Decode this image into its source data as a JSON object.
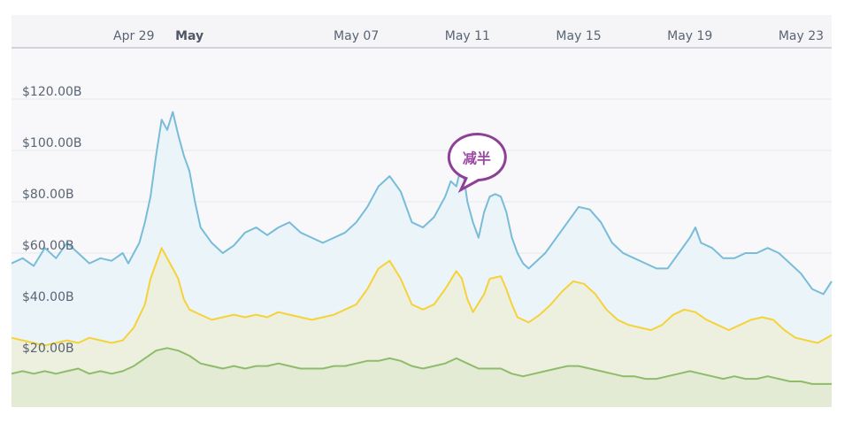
{
  "chart_data": {
    "type": "area",
    "x_tick_labels": [
      {
        "label": "Apr 29",
        "day": 0,
        "bold": false
      },
      {
        "label": "May",
        "day": 2,
        "bold": true
      },
      {
        "label": "May 07",
        "day": 8,
        "bold": false
      },
      {
        "label": "May 11",
        "day": 12,
        "bold": false
      },
      {
        "label": "May 15",
        "day": 16,
        "bold": false
      },
      {
        "label": "May 19",
        "day": 20,
        "bold": false
      },
      {
        "label": "May 23",
        "day": 24,
        "bold": false
      }
    ],
    "y_ticks": [
      {
        "value": 20,
        "label": "$20.00B"
      },
      {
        "value": 40,
        "label": "$40.00B"
      },
      {
        "value": 60,
        "label": "$60.00B"
      },
      {
        "value": 80,
        "label": "$80.00B"
      },
      {
        "value": 100,
        "label": "$100.00B"
      },
      {
        "value": 120,
        "label": "$120.00B"
      }
    ],
    "ylim": [
      0,
      140
    ],
    "xlim": [
      -4.4,
      25.1
    ],
    "grid": true,
    "annotation": {
      "text": "减半",
      "day": 12.4,
      "value": 85
    },
    "series": [
      {
        "color": "#78bcd9",
        "fill": "#e9f3f8",
        "points": [
          [
            -4.4,
            56
          ],
          [
            -4.0,
            58
          ],
          [
            -3.6,
            55
          ],
          [
            -3.2,
            62
          ],
          [
            -2.8,
            58
          ],
          [
            -2.4,
            64
          ],
          [
            -2.0,
            60
          ],
          [
            -1.6,
            56
          ],
          [
            -1.2,
            58
          ],
          [
            -0.8,
            57
          ],
          [
            -0.4,
            60
          ],
          [
            -0.2,
            56
          ],
          [
            0.2,
            64
          ],
          [
            0.4,
            72
          ],
          [
            0.6,
            82
          ],
          [
            0.8,
            98
          ],
          [
            1.0,
            112
          ],
          [
            1.2,
            108
          ],
          [
            1.4,
            115
          ],
          [
            1.6,
            106
          ],
          [
            1.8,
            98
          ],
          [
            2.0,
            92
          ],
          [
            2.2,
            80
          ],
          [
            2.4,
            70
          ],
          [
            2.6,
            67
          ],
          [
            2.8,
            64
          ],
          [
            3.0,
            62
          ],
          [
            3.2,
            60
          ],
          [
            3.6,
            63
          ],
          [
            4.0,
            68
          ],
          [
            4.4,
            70
          ],
          [
            4.8,
            67
          ],
          [
            5.2,
            70
          ],
          [
            5.6,
            72
          ],
          [
            6.0,
            68
          ],
          [
            6.4,
            66
          ],
          [
            6.8,
            64
          ],
          [
            7.2,
            66
          ],
          [
            7.6,
            68
          ],
          [
            8.0,
            72
          ],
          [
            8.4,
            78
          ],
          [
            8.8,
            86
          ],
          [
            9.2,
            90
          ],
          [
            9.6,
            84
          ],
          [
            10.0,
            72
          ],
          [
            10.4,
            70
          ],
          [
            10.8,
            74
          ],
          [
            11.2,
            82
          ],
          [
            11.4,
            88
          ],
          [
            11.6,
            86
          ],
          [
            11.8,
            95
          ],
          [
            12.0,
            80
          ],
          [
            12.2,
            72
          ],
          [
            12.4,
            66
          ],
          [
            12.6,
            76
          ],
          [
            12.8,
            82
          ],
          [
            13.0,
            83
          ],
          [
            13.2,
            82
          ],
          [
            13.4,
            76
          ],
          [
            13.6,
            66
          ],
          [
            13.8,
            60
          ],
          [
            14.0,
            56
          ],
          [
            14.2,
            54
          ],
          [
            14.4,
            56
          ],
          [
            14.8,
            60
          ],
          [
            15.2,
            66
          ],
          [
            15.6,
            72
          ],
          [
            16.0,
            78
          ],
          [
            16.4,
            77
          ],
          [
            16.8,
            72
          ],
          [
            17.2,
            64
          ],
          [
            17.6,
            60
          ],
          [
            18.0,
            58
          ],
          [
            18.4,
            56
          ],
          [
            18.8,
            54
          ],
          [
            19.2,
            54
          ],
          [
            19.6,
            60
          ],
          [
            20.0,
            66
          ],
          [
            20.2,
            70
          ],
          [
            20.4,
            64
          ],
          [
            20.8,
            62
          ],
          [
            21.2,
            58
          ],
          [
            21.6,
            58
          ],
          [
            22.0,
            60
          ],
          [
            22.4,
            60
          ],
          [
            22.8,
            62
          ],
          [
            23.2,
            60
          ],
          [
            23.6,
            56
          ],
          [
            24.0,
            52
          ],
          [
            24.4,
            46
          ],
          [
            24.8,
            44
          ],
          [
            25.1,
            49
          ]
        ]
      },
      {
        "color": "#f6d23a",
        "fill": "#edf0dc",
        "points": [
          [
            -4.4,
            27
          ],
          [
            -4.0,
            26
          ],
          [
            -3.6,
            25
          ],
          [
            -3.2,
            24
          ],
          [
            -2.8,
            25
          ],
          [
            -2.4,
            26
          ],
          [
            -2.0,
            25
          ],
          [
            -1.6,
            27
          ],
          [
            -1.2,
            26
          ],
          [
            -0.8,
            25
          ],
          [
            -0.4,
            26
          ],
          [
            0.0,
            31
          ],
          [
            0.4,
            40
          ],
          [
            0.6,
            50
          ],
          [
            0.8,
            56
          ],
          [
            1.0,
            62
          ],
          [
            1.2,
            58
          ],
          [
            1.4,
            54
          ],
          [
            1.6,
            50
          ],
          [
            1.8,
            42
          ],
          [
            2.0,
            38
          ],
          [
            2.4,
            36
          ],
          [
            2.8,
            34
          ],
          [
            3.2,
            35
          ],
          [
            3.6,
            36
          ],
          [
            4.0,
            35
          ],
          [
            4.4,
            36
          ],
          [
            4.8,
            35
          ],
          [
            5.2,
            37
          ],
          [
            5.6,
            36
          ],
          [
            6.0,
            35
          ],
          [
            6.4,
            34
          ],
          [
            6.8,
            35
          ],
          [
            7.2,
            36
          ],
          [
            7.6,
            38
          ],
          [
            8.0,
            40
          ],
          [
            8.4,
            46
          ],
          [
            8.8,
            54
          ],
          [
            9.2,
            57
          ],
          [
            9.6,
            50
          ],
          [
            10.0,
            40
          ],
          [
            10.4,
            38
          ],
          [
            10.8,
            40
          ],
          [
            11.2,
            46
          ],
          [
            11.6,
            53
          ],
          [
            11.8,
            50
          ],
          [
            12.0,
            42
          ],
          [
            12.2,
            37
          ],
          [
            12.6,
            44
          ],
          [
            12.8,
            50
          ],
          [
            13.2,
            51
          ],
          [
            13.4,
            46
          ],
          [
            13.6,
            40
          ],
          [
            13.8,
            35
          ],
          [
            14.2,
            33
          ],
          [
            14.6,
            36
          ],
          [
            15.0,
            40
          ],
          [
            15.4,
            45
          ],
          [
            15.8,
            49
          ],
          [
            16.2,
            48
          ],
          [
            16.6,
            44
          ],
          [
            17.0,
            38
          ],
          [
            17.4,
            34
          ],
          [
            17.8,
            32
          ],
          [
            18.2,
            31
          ],
          [
            18.6,
            30
          ],
          [
            19.0,
            32
          ],
          [
            19.4,
            36
          ],
          [
            19.8,
            38
          ],
          [
            20.2,
            37
          ],
          [
            20.6,
            34
          ],
          [
            21.0,
            32
          ],
          [
            21.4,
            30
          ],
          [
            21.8,
            32
          ],
          [
            22.2,
            34
          ],
          [
            22.6,
            35
          ],
          [
            23.0,
            34
          ],
          [
            23.4,
            30
          ],
          [
            23.8,
            27
          ],
          [
            24.2,
            26
          ],
          [
            24.6,
            25
          ],
          [
            25.1,
            28
          ]
        ]
      },
      {
        "color": "#8fbc6a",
        "fill": "#e2ead3",
        "points": [
          [
            -4.4,
            13
          ],
          [
            -4.0,
            14
          ],
          [
            -3.6,
            13
          ],
          [
            -3.2,
            14
          ],
          [
            -2.8,
            13
          ],
          [
            -2.4,
            14
          ],
          [
            -2.0,
            15
          ],
          [
            -1.6,
            13
          ],
          [
            -1.2,
            14
          ],
          [
            -0.8,
            13
          ],
          [
            -0.4,
            14
          ],
          [
            0.0,
            16
          ],
          [
            0.4,
            19
          ],
          [
            0.8,
            22
          ],
          [
            1.2,
            23
          ],
          [
            1.6,
            22
          ],
          [
            2.0,
            20
          ],
          [
            2.4,
            17
          ],
          [
            2.8,
            16
          ],
          [
            3.2,
            15
          ],
          [
            3.6,
            16
          ],
          [
            4.0,
            15
          ],
          [
            4.4,
            16
          ],
          [
            4.8,
            16
          ],
          [
            5.2,
            17
          ],
          [
            5.6,
            16
          ],
          [
            6.0,
            15
          ],
          [
            6.4,
            15
          ],
          [
            6.8,
            15
          ],
          [
            7.2,
            16
          ],
          [
            7.6,
            16
          ],
          [
            8.0,
            17
          ],
          [
            8.4,
            18
          ],
          [
            8.8,
            18
          ],
          [
            9.2,
            19
          ],
          [
            9.6,
            18
          ],
          [
            10.0,
            16
          ],
          [
            10.4,
            15
          ],
          [
            10.8,
            16
          ],
          [
            11.2,
            17
          ],
          [
            11.6,
            19
          ],
          [
            12.0,
            17
          ],
          [
            12.4,
            15
          ],
          [
            12.8,
            15
          ],
          [
            13.2,
            15
          ],
          [
            13.6,
            13
          ],
          [
            14.0,
            12
          ],
          [
            14.4,
            13
          ],
          [
            14.8,
            14
          ],
          [
            15.2,
            15
          ],
          [
            15.6,
            16
          ],
          [
            16.0,
            16
          ],
          [
            16.4,
            15
          ],
          [
            16.8,
            14
          ],
          [
            17.2,
            13
          ],
          [
            17.6,
            12
          ],
          [
            18.0,
            12
          ],
          [
            18.4,
            11
          ],
          [
            18.8,
            11
          ],
          [
            19.2,
            12
          ],
          [
            19.6,
            13
          ],
          [
            20.0,
            14
          ],
          [
            20.4,
            13
          ],
          [
            20.8,
            12
          ],
          [
            21.2,
            11
          ],
          [
            21.6,
            12
          ],
          [
            22.0,
            11
          ],
          [
            22.4,
            11
          ],
          [
            22.8,
            12
          ],
          [
            23.2,
            11
          ],
          [
            23.6,
            10
          ],
          [
            24.0,
            10
          ],
          [
            24.4,
            9
          ],
          [
            24.8,
            9
          ],
          [
            25.1,
            9
          ]
        ]
      }
    ]
  }
}
